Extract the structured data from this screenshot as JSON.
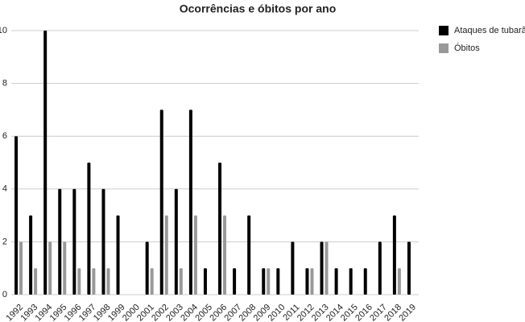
{
  "chart_data": {
    "type": "bar",
    "title": "Ocorrências e óbitos por ano",
    "categories": [
      "1992",
      "1993",
      "1994",
      "1995",
      "1996",
      "1997",
      "1998",
      "1999",
      "2000",
      "2001",
      "2002",
      "2003",
      "2004",
      "2005",
      "2006",
      "2007",
      "2008",
      "2009",
      "2010",
      "2011",
      "2012",
      "2013",
      "2014",
      "2015",
      "2016",
      "2017",
      "2018",
      "2019"
    ],
    "series": [
      {
        "name": "Ataques de tubarão",
        "color": "#000000",
        "values": [
          6,
          3,
          10,
          4,
          4,
          5,
          4,
          3,
          0,
          2,
          7,
          4,
          7,
          1,
          5,
          1,
          3,
          1,
          1,
          2,
          1,
          2,
          1,
          1,
          1,
          2,
          3,
          2
        ]
      },
      {
        "name": "Óbitos",
        "color": "#999999",
        "values": [
          2,
          1,
          2,
          2,
          1,
          1,
          1,
          0,
          0,
          1,
          3,
          1,
          3,
          0,
          3,
          0,
          0,
          1,
          0,
          0,
          1,
          2,
          0,
          0,
          0,
          0,
          1,
          0
        ]
      }
    ],
    "ylim": [
      0,
      10
    ],
    "yticks": [
      0,
      2,
      4,
      6,
      8,
      10
    ],
    "grid": true,
    "legend": "right"
  }
}
